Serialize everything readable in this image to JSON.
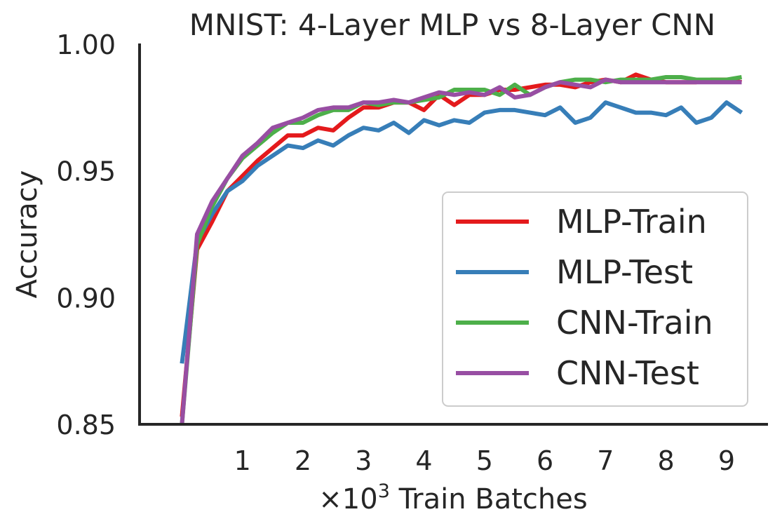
{
  "chart_data": {
    "type": "line",
    "title": "MNIST: 4-Layer MLP vs 8-Layer CNN",
    "xlabel_prefix": "×10",
    "xlabel_sup": "3",
    "xlabel_suffix": " Train Batches",
    "ylabel": "Accuracy",
    "xlim": [
      -0.7,
      9.65
    ],
    "ylim": [
      0.85,
      1.0
    ],
    "xticks": [
      1,
      2,
      3,
      4,
      5,
      6,
      7,
      8,
      9
    ],
    "xtick_labels": [
      "1",
      "2",
      "3",
      "4",
      "5",
      "6",
      "7",
      "8",
      "9"
    ],
    "yticks": [
      0.85,
      0.9,
      0.95,
      1.0
    ],
    "ytick_labels": [
      "0.85",
      "0.90",
      "0.95",
      "1.00"
    ],
    "grid": false,
    "legend_position": "lower-right",
    "x": [
      0,
      0.25,
      0.5,
      0.75,
      1.0,
      1.25,
      1.5,
      1.75,
      2.0,
      2.25,
      2.5,
      2.75,
      3.0,
      3.25,
      3.5,
      3.75,
      4.0,
      4.25,
      4.5,
      4.75,
      5.0,
      5.25,
      5.5,
      5.75,
      6.0,
      6.25,
      6.5,
      6.75,
      7.0,
      7.25,
      7.5,
      7.75,
      8.0,
      8.25,
      8.5,
      8.75,
      9.0,
      9.25
    ],
    "series": [
      {
        "name": "MLP-Train",
        "color": "#e41a1c",
        "values": [
          0.853,
          0.919,
          0.93,
          0.942,
          0.948,
          0.954,
          0.959,
          0.964,
          0.964,
          0.967,
          0.966,
          0.971,
          0.975,
          0.975,
          0.977,
          0.977,
          0.974,
          0.98,
          0.976,
          0.98,
          0.98,
          0.982,
          0.982,
          0.983,
          0.984,
          0.984,
          0.983,
          0.985,
          0.986,
          0.985,
          0.988,
          0.986,
          0.985,
          0.985,
          0.985,
          0.986,
          0.986,
          0.985
        ]
      },
      {
        "name": "MLP-Test",
        "color": "#377eb8",
        "values": [
          0.874,
          0.922,
          0.933,
          0.942,
          0.946,
          0.952,
          0.956,
          0.96,
          0.959,
          0.962,
          0.96,
          0.964,
          0.967,
          0.966,
          0.969,
          0.965,
          0.97,
          0.968,
          0.97,
          0.969,
          0.973,
          0.974,
          0.974,
          0.973,
          0.972,
          0.975,
          0.969,
          0.971,
          0.977,
          0.975,
          0.973,
          0.973,
          0.972,
          0.975,
          0.969,
          0.971,
          0.977,
          0.973
        ]
      },
      {
        "name": "CNN-Train",
        "color": "#4daf4a",
        "values": [
          0.85,
          0.921,
          0.936,
          0.947,
          0.955,
          0.96,
          0.965,
          0.969,
          0.969,
          0.972,
          0.974,
          0.974,
          0.977,
          0.976,
          0.977,
          0.977,
          0.978,
          0.979,
          0.982,
          0.982,
          0.982,
          0.98,
          0.984,
          0.98,
          0.983,
          0.985,
          0.986,
          0.986,
          0.985,
          0.986,
          0.986,
          0.986,
          0.987,
          0.987,
          0.986,
          0.986,
          0.986,
          0.987
        ]
      },
      {
        "name": "CNN-Test",
        "color": "#984ea3",
        "values": [
          0.85,
          0.925,
          0.938,
          0.947,
          0.956,
          0.961,
          0.967,
          0.969,
          0.971,
          0.974,
          0.975,
          0.975,
          0.977,
          0.977,
          0.978,
          0.977,
          0.979,
          0.981,
          0.98,
          0.981,
          0.98,
          0.983,
          0.979,
          0.98,
          0.983,
          0.985,
          0.984,
          0.983,
          0.986,
          0.985,
          0.985,
          0.985,
          0.985,
          0.985,
          0.985,
          0.985,
          0.985,
          0.985
        ]
      }
    ]
  }
}
